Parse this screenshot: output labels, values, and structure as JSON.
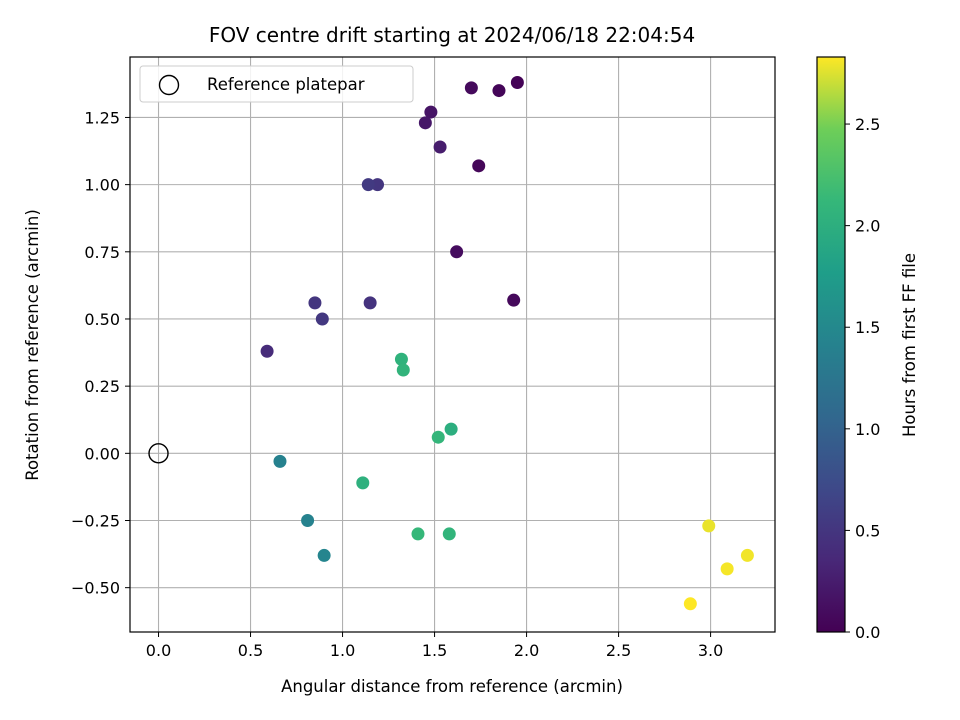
{
  "chart_data": {
    "type": "scatter",
    "title": "FOV centre drift starting at 2024/06/18 22:04:54",
    "xlabel": "Angular distance from reference (arcmin)",
    "ylabel": "Rotation from reference (arcmin)",
    "xlim": [
      -0.155,
      3.35
    ],
    "ylim": [
      -0.665,
      1.475
    ],
    "xticks": [
      "0.0",
      "0.5",
      "1.0",
      "1.5",
      "2.0",
      "2.5",
      "3.0"
    ],
    "xtick_values": [
      0.0,
      0.5,
      1.0,
      1.5,
      2.0,
      2.5,
      3.0
    ],
    "yticks": [
      "−0.50",
      "−0.25",
      "0.00",
      "0.25",
      "0.50",
      "0.75",
      "1.00",
      "1.25"
    ],
    "ytick_values": [
      -0.5,
      -0.25,
      0.0,
      0.25,
      0.5,
      0.75,
      1.0,
      1.25
    ],
    "grid": true,
    "legend": {
      "position": "top-left",
      "entries": [
        {
          "label": "Reference platepar",
          "marker": "hollow-circle"
        }
      ]
    },
    "reference_point": {
      "x": 0.0,
      "y": 0.0
    },
    "colorbar": {
      "label": "Hours from first FF file",
      "colormap": "viridis",
      "range": [
        0.0,
        2.83
      ],
      "ticks": [
        "0.0",
        "0.5",
        "1.0",
        "1.5",
        "2.0",
        "2.5"
      ],
      "tick_values": [
        0.0,
        0.5,
        1.0,
        1.5,
        2.0,
        2.5
      ]
    },
    "points": [
      {
        "x": 1.95,
        "y": 1.38,
        "c": 0.02
      },
      {
        "x": 1.85,
        "y": 1.35,
        "c": 0.04
      },
      {
        "x": 1.7,
        "y": 1.36,
        "c": 0.08
      },
      {
        "x": 1.74,
        "y": 1.07,
        "c": 0.05
      },
      {
        "x": 1.93,
        "y": 0.57,
        "c": 0.07
      },
      {
        "x": 1.62,
        "y": 0.75,
        "c": 0.1
      },
      {
        "x": 1.48,
        "y": 1.27,
        "c": 0.17
      },
      {
        "x": 1.45,
        "y": 1.23,
        "c": 0.2
      },
      {
        "x": 1.53,
        "y": 1.14,
        "c": 0.25
      },
      {
        "x": 1.19,
        "y": 1.0,
        "c": 0.5
      },
      {
        "x": 1.14,
        "y": 1.0,
        "c": 0.55
      },
      {
        "x": 0.59,
        "y": 0.38,
        "c": 0.4
      },
      {
        "x": 0.85,
        "y": 0.56,
        "c": 0.5
      },
      {
        "x": 1.15,
        "y": 0.56,
        "c": 0.47
      },
      {
        "x": 0.89,
        "y": 0.5,
        "c": 0.52
      },
      {
        "x": 0.66,
        "y": -0.03,
        "c": 1.4
      },
      {
        "x": 0.81,
        "y": -0.25,
        "c": 1.42
      },
      {
        "x": 0.9,
        "y": -0.38,
        "c": 1.45
      },
      {
        "x": 1.32,
        "y": 0.35,
        "c": 2.05
      },
      {
        "x": 1.33,
        "y": 0.31,
        "c": 2.07
      },
      {
        "x": 1.52,
        "y": 0.06,
        "c": 2.1
      },
      {
        "x": 1.59,
        "y": 0.09,
        "c": 2.0
      },
      {
        "x": 1.11,
        "y": -0.11,
        "c": 2.02
      },
      {
        "x": 1.41,
        "y": -0.3,
        "c": 2.12
      },
      {
        "x": 1.58,
        "y": -0.3,
        "c": 2.08
      },
      {
        "x": 2.99,
        "y": -0.27,
        "c": 2.78
      },
      {
        "x": 3.2,
        "y": -0.38,
        "c": 2.8
      },
      {
        "x": 3.09,
        "y": -0.43,
        "c": 2.81
      },
      {
        "x": 2.89,
        "y": -0.56,
        "c": 2.83
      }
    ]
  }
}
